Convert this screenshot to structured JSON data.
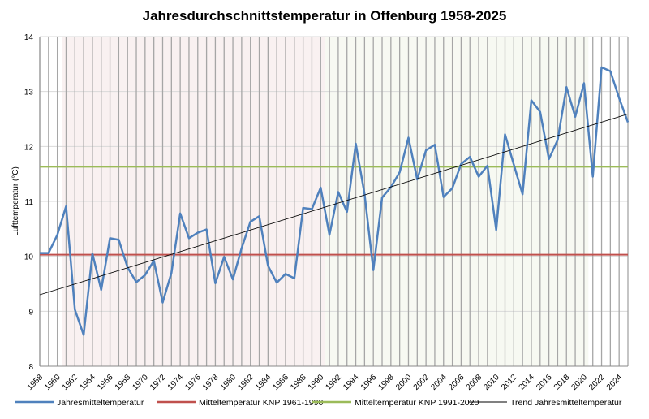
{
  "chart_data": {
    "type": "line",
    "title": "Jahresdurchschnittstemperatur in Offenburg 1958-2025",
    "ylabel": "Lufttemperatur (°C)",
    "xlabel": "",
    "ylim": [
      8,
      14
    ],
    "yticks": [
      8,
      9,
      10,
      11,
      12,
      13,
      14
    ],
    "xlim": [
      1958,
      2025
    ],
    "xtick_step": 2,
    "grid": "vertical per year, horizontal per degree",
    "legend_position": "bottom",
    "x": [
      1958,
      1959,
      1960,
      1961,
      1962,
      1963,
      1964,
      1965,
      1966,
      1967,
      1968,
      1969,
      1970,
      1971,
      1972,
      1973,
      1974,
      1975,
      1976,
      1977,
      1978,
      1979,
      1980,
      1981,
      1982,
      1983,
      1984,
      1985,
      1986,
      1987,
      1988,
      1989,
      1990,
      1991,
      1992,
      1993,
      1994,
      1995,
      1996,
      1997,
      1998,
      1999,
      2000,
      2001,
      2002,
      2003,
      2004,
      2005,
      2006,
      2007,
      2008,
      2009,
      2010,
      2011,
      2012,
      2013,
      2014,
      2015,
      2016,
      2017,
      2018,
      2019,
      2020,
      2021,
      2022,
      2023,
      2024,
      2025
    ],
    "series": [
      {
        "name": "Jahresmitteltemperatur",
        "color": "#4f81bd",
        "values": [
          10.06,
          10.06,
          10.39,
          10.91,
          9.03,
          8.57,
          10.05,
          9.39,
          10.33,
          10.3,
          9.8,
          9.53,
          9.66,
          9.92,
          9.16,
          9.7,
          10.78,
          10.33,
          10.43,
          10.49,
          9.51,
          9.99,
          9.58,
          10.15,
          10.63,
          10.73,
          9.83,
          9.52,
          9.68,
          9.6,
          10.88,
          10.86,
          11.25,
          10.39,
          11.17,
          10.81,
          12.05,
          11.13,
          9.75,
          11.07,
          11.26,
          11.53,
          12.16,
          11.4,
          11.93,
          12.03,
          11.08,
          11.24,
          11.68,
          11.81,
          11.45,
          11.65,
          10.48,
          12.22,
          11.67,
          11.13,
          12.84,
          12.63,
          11.77,
          12.12,
          13.08,
          12.54,
          13.15,
          11.45,
          13.44,
          13.37,
          12.88,
          12.44
        ]
      },
      {
        "name": "Mitteltemperatur KNP 1961-1990",
        "color": "#c0504d",
        "constant": 10.03
      },
      {
        "name": "Mitteltemperatur KNP 1991-2020",
        "color": "#9bbb59",
        "constant": 11.63
      },
      {
        "name": "Trend Jahresmitteltemperatur",
        "color": "#000000",
        "start": [
          1958,
          9.3
        ],
        "end": [
          2025,
          12.59
        ]
      }
    ],
    "shaded_periods": [
      {
        "from": 1961,
        "to": 1990,
        "color": "#f9f1f1"
      },
      {
        "from": 1991,
        "to": 2020,
        "color": "#f7f9f2"
      }
    ]
  }
}
